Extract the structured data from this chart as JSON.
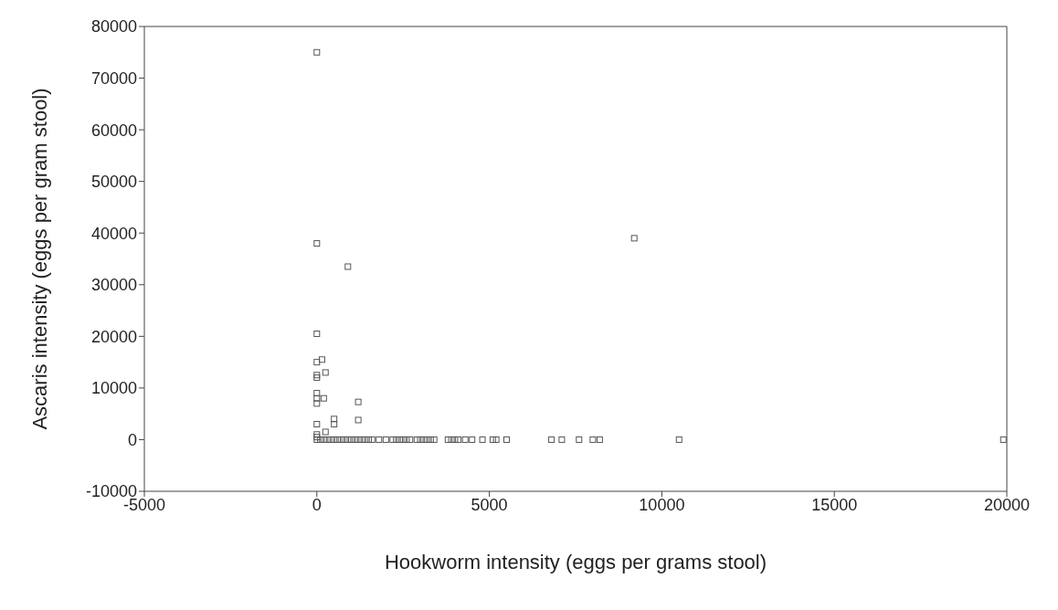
{
  "chart_data": {
    "type": "scatter",
    "xlabel": "Hookworm intensity (eggs per grams stool)",
    "ylabel": "Ascaris intensity (eggs per gram stool)",
    "xlim": [
      -5000,
      20000
    ],
    "xticks": [
      -5000,
      0,
      5000,
      10000,
      15000,
      20000
    ],
    "ylim": [
      -10000,
      80000
    ],
    "yticks": [
      -10000,
      0,
      10000,
      20000,
      30000,
      40000,
      50000,
      60000,
      70000,
      80000
    ],
    "grid": false,
    "marker": "square",
    "series": [
      {
        "color": "#555555",
        "x": [
          0,
          0,
          900,
          9200,
          0,
          150,
          0,
          250,
          0,
          0,
          0,
          200,
          0,
          0,
          1200,
          500,
          1200,
          0,
          500,
          250,
          0,
          0,
          0,
          100,
          200,
          300,
          400,
          500,
          600,
          700,
          800,
          900,
          1000,
          1100,
          1200,
          1300,
          1400,
          1500,
          1600,
          1800,
          2000,
          2200,
          2300,
          2400,
          2500,
          2600,
          2700,
          2900,
          3000,
          3100,
          3200,
          3300,
          3400,
          3800,
          3900,
          4000,
          4100,
          4300,
          4500,
          4800,
          5100,
          5200,
          5500,
          6800,
          7100,
          7600,
          8000,
          8200,
          10500,
          19900
        ],
        "values": [
          75000,
          38000,
          33500,
          39000,
          20500,
          15500,
          15000,
          13000,
          12500,
          12000,
          9000,
          8000,
          8000,
          7000,
          7300,
          4000,
          3800,
          3000,
          3000,
          1500,
          1000,
          500,
          0,
          0,
          0,
          0,
          0,
          0,
          0,
          0,
          0,
          0,
          0,
          0,
          0,
          0,
          0,
          0,
          0,
          0,
          0,
          0,
          0,
          0,
          0,
          0,
          0,
          0,
          0,
          0,
          0,
          0,
          0,
          0,
          0,
          0,
          0,
          0,
          0,
          0,
          0,
          0,
          0,
          0,
          0,
          0,
          0,
          0,
          0,
          0
        ]
      }
    ]
  }
}
